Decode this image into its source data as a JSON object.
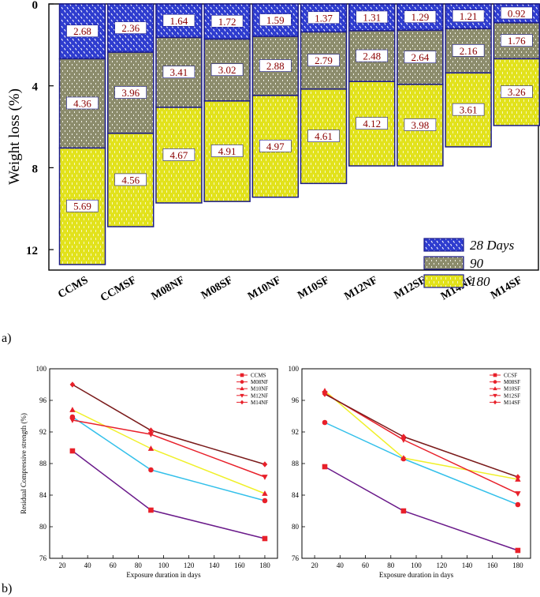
{
  "panel_labels": {
    "a": "a)",
    "b": "b)"
  },
  "chart_data": [
    {
      "type": "bar",
      "stacked": true,
      "orientation": "inverted-y",
      "ylabel": "Weight loss (%)",
      "xlabel": "",
      "ylim": [
        0,
        13
      ],
      "yticks": [
        "0",
        "4",
        "8",
        "12"
      ],
      "ytick_values": [
        0,
        4,
        8,
        12
      ],
      "categories": [
        "CCMS",
        "CCMSF",
        "M08NF",
        "M08SF",
        "M10NF",
        "M10SF",
        "M12NF",
        "M12SF",
        "M14NF",
        "M14SF"
      ],
      "series": [
        {
          "name": "28 Days",
          "color": "#2e3ccf",
          "values": [
            2.68,
            2.36,
            1.64,
            1.72,
            1.59,
            1.37,
            1.31,
            1.29,
            1.21,
            0.92
          ],
          "labels": [
            "2.68",
            "2.36",
            "1.64",
            "1.72",
            "1.59",
            "1.37",
            "1.31",
            "1.29",
            "1.21",
            "0.92"
          ]
        },
        {
          "name": "90",
          "color": "#8c8c6c",
          "values": [
            4.36,
            3.96,
            3.41,
            3.02,
            2.88,
            2.79,
            2.48,
            2.64,
            2.16,
            1.76
          ],
          "labels": [
            "4.36",
            "3.96",
            "3.41",
            "3.02",
            "2.88",
            "2.79",
            "2.48",
            "2.64",
            "2.16",
            "1.76"
          ]
        },
        {
          "name": "180",
          "color": "#e2e21c",
          "values": [
            5.69,
            4.56,
            4.67,
            4.91,
            4.97,
            4.61,
            4.12,
            3.98,
            3.61,
            3.26
          ],
          "labels": [
            "5.69",
            "4.56",
            "4.67",
            "4.91",
            "4.97",
            "4.61",
            "4.12",
            "3.98",
            "3.61",
            "3.26"
          ]
        }
      ],
      "legend": "bottom-right"
    },
    {
      "type": "line",
      "xlabel": "Exposure duration in days",
      "ylabel": "Residual Compressive strength (%)",
      "xlim": [
        10,
        190
      ],
      "ylim": [
        76,
        100
      ],
      "xticks": [
        "20",
        "40",
        "60",
        "80",
        "100",
        "120",
        "140",
        "160",
        "180"
      ],
      "xtick_values": [
        20,
        40,
        60,
        80,
        100,
        120,
        140,
        160,
        180
      ],
      "yticks": [
        "76",
        "80",
        "84",
        "88",
        "92",
        "96",
        "100"
      ],
      "ytick_values": [
        76,
        80,
        84,
        88,
        92,
        96,
        100
      ],
      "x": [
        28,
        90,
        180
      ],
      "series": [
        {
          "name": "CCMS",
          "line_color": "#6a1a8a",
          "marker_color": "#e8202a",
          "marker": "square",
          "values": [
            89.6,
            82.1,
            78.5
          ]
        },
        {
          "name": "M08NF",
          "line_color": "#33c0ea",
          "marker_color": "#e8202a",
          "marker": "circle",
          "values": [
            93.9,
            87.2,
            83.3
          ]
        },
        {
          "name": "M10NF",
          "line_color": "#f0f02a",
          "marker_color": "#e8202a",
          "marker": "triangle-up",
          "values": [
            94.8,
            89.9,
            84.2
          ]
        },
        {
          "name": "M12NF",
          "line_color": "#e8202a",
          "marker_color": "#e8202a",
          "marker": "triangle-down",
          "values": [
            93.5,
            91.7,
            86.3
          ]
        },
        {
          "name": "M14NF",
          "line_color": "#7a1a1a",
          "marker_color": "#e8202a",
          "marker": "diamond",
          "values": [
            98.0,
            92.2,
            87.9
          ]
        }
      ],
      "legend": "top-right"
    },
    {
      "type": "line",
      "xlabel": "Exposure duration in days",
      "ylabel": "",
      "xlim": [
        10,
        190
      ],
      "ylim": [
        76,
        100
      ],
      "xticks": [
        "20",
        "40",
        "60",
        "80",
        "100",
        "120",
        "140",
        "160",
        "180"
      ],
      "xtick_values": [
        20,
        40,
        60,
        80,
        100,
        120,
        140,
        160,
        180
      ],
      "yticks": [
        "76",
        "80",
        "84",
        "88",
        "92",
        "96",
        "100"
      ],
      "ytick_values": [
        76,
        80,
        84,
        88,
        92,
        96,
        100
      ],
      "x": [
        28,
        90,
        180
      ],
      "series": [
        {
          "name": "CCSF",
          "line_color": "#6a1a8a",
          "marker_color": "#e8202a",
          "marker": "square",
          "values": [
            87.6,
            82.0,
            77.0
          ]
        },
        {
          "name": "M08SF",
          "line_color": "#33c0ea",
          "marker_color": "#e8202a",
          "marker": "circle",
          "values": [
            93.2,
            88.6,
            82.8
          ]
        },
        {
          "name": "M10SF",
          "line_color": "#f0f02a",
          "marker_color": "#e8202a",
          "marker": "triangle-up",
          "values": [
            97.2,
            88.7,
            86.0
          ]
        },
        {
          "name": "M12SF",
          "line_color": "#e8202a",
          "marker_color": "#e8202a",
          "marker": "triangle-down",
          "values": [
            96.9,
            91.0,
            84.2
          ]
        },
        {
          "name": "M14SF",
          "line_color": "#7a1a1a",
          "marker_color": "#e8202a",
          "marker": "diamond",
          "values": [
            96.8,
            91.4,
            86.3
          ]
        }
      ],
      "legend": "top-right"
    }
  ]
}
